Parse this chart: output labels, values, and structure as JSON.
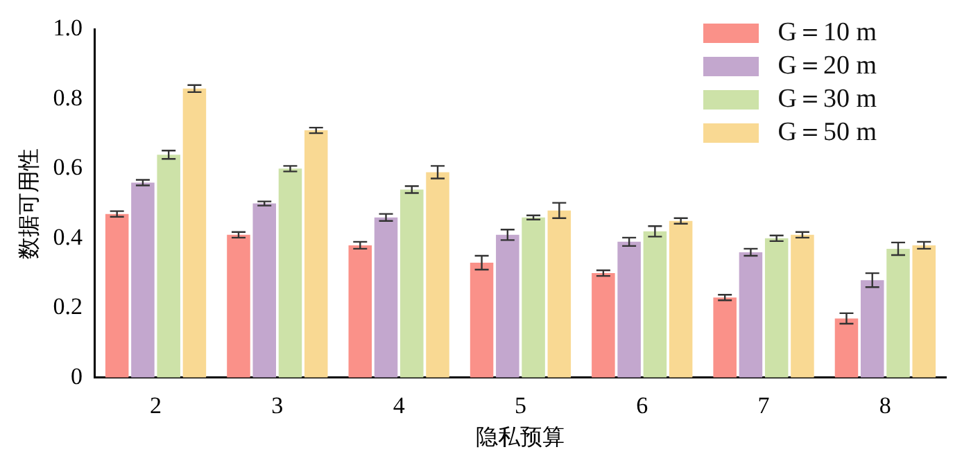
{
  "chart_data": {
    "type": "bar",
    "xlabel": "隐私预算",
    "ylabel": "数据可用性",
    "categories": [
      "2",
      "3",
      "4",
      "5",
      "6",
      "7",
      "8"
    ],
    "ylim": [
      0,
      1.0
    ],
    "yticks": [
      0,
      0.2,
      0.4,
      0.6,
      0.8,
      {
        "value": 1.0,
        "label": "1.0"
      }
    ],
    "grid": false,
    "legend": "top right",
    "series": [
      {
        "name": "G＝10 m",
        "color": "#fa9189",
        "values": [
          0.47,
          0.41,
          0.38,
          0.33,
          0.3,
          0.23,
          0.17
        ],
        "errors": [
          0.008,
          0.008,
          0.01,
          0.02,
          0.008,
          0.008,
          0.015
        ]
      },
      {
        "name": "G＝20 m",
        "color": "#c3a7ce",
        "values": [
          0.56,
          0.5,
          0.46,
          0.41,
          0.39,
          0.36,
          0.28
        ],
        "errors": [
          0.008,
          0.006,
          0.01,
          0.015,
          0.012,
          0.01,
          0.02
        ]
      },
      {
        "name": "G＝30 m",
        "color": "#cde2a8",
        "values": [
          0.64,
          0.6,
          0.54,
          0.46,
          0.42,
          0.4,
          0.37
        ],
        "errors": [
          0.012,
          0.008,
          0.01,
          0.006,
          0.015,
          0.008,
          0.018
        ]
      },
      {
        "name": "G＝50 m",
        "color": "#f9d993",
        "values": [
          0.83,
          0.71,
          0.59,
          0.48,
          0.45,
          0.41,
          0.38
        ],
        "errors": [
          0.01,
          0.008,
          0.018,
          0.022,
          0.008,
          0.008,
          0.01
        ]
      }
    ]
  }
}
